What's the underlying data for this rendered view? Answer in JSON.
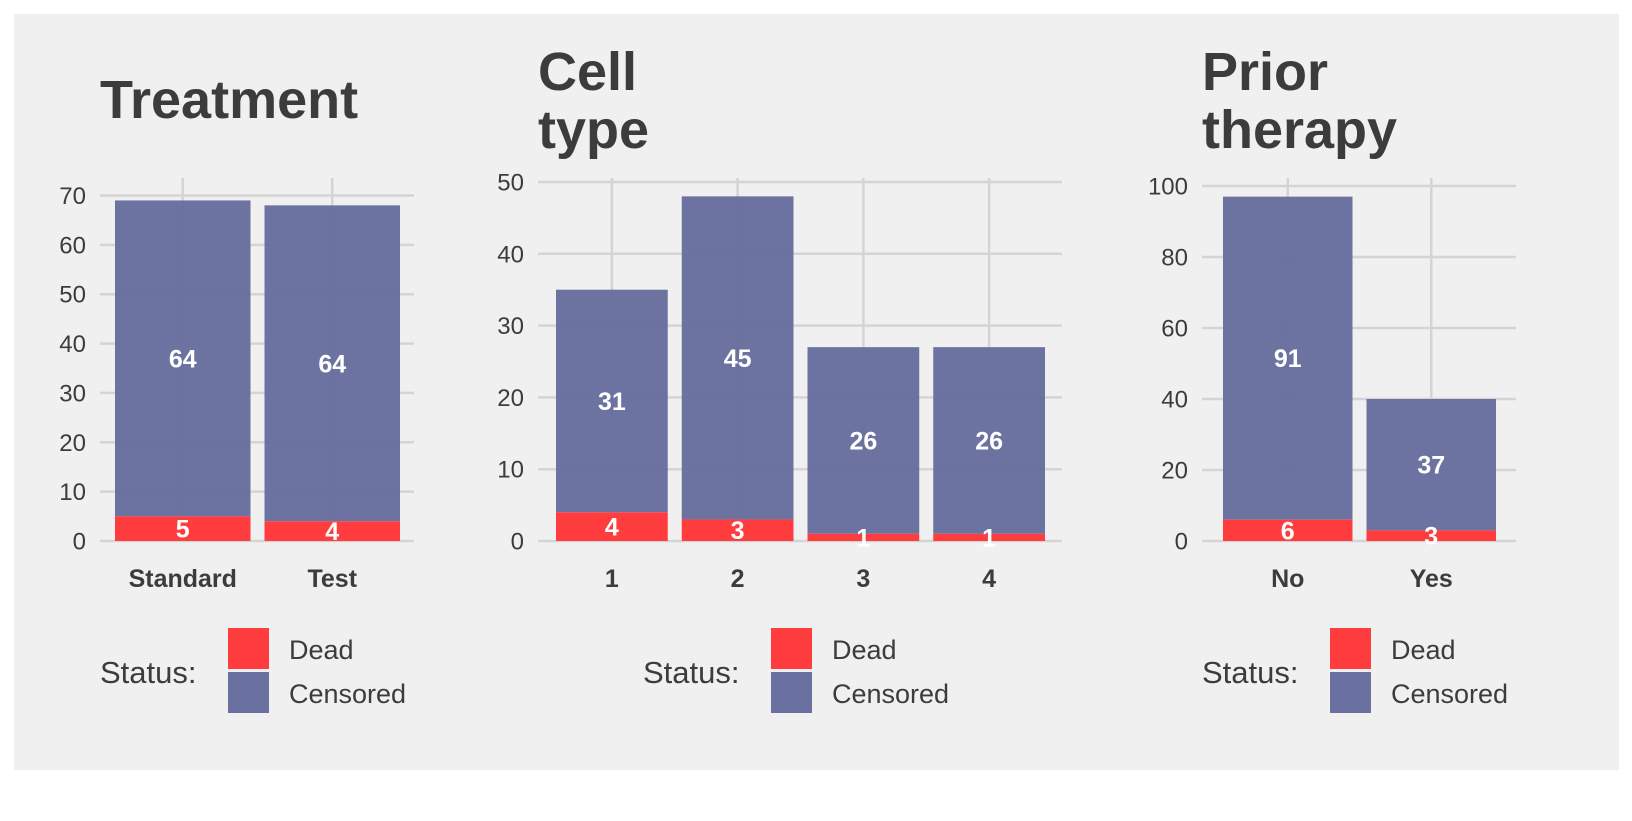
{
  "colors": {
    "dead": "#ff3d3f",
    "censored": "#6a709f",
    "panel_bg": "#f0f0f0",
    "grid": "#d4d4d4",
    "text": "#3c3c3c",
    "bar_label": "#ffffff"
  },
  "legend": {
    "title": "Status:",
    "dead_label": "Dead",
    "censored_label": "Censored"
  },
  "chart_data": [
    {
      "type": "bar",
      "stacked": true,
      "title_lines": [
        "Treatment"
      ],
      "categories": [
        "Standard",
        "Test"
      ],
      "series": [
        {
          "name": "Dead",
          "values": [
            5,
            4
          ]
        },
        {
          "name": "Censored",
          "values": [
            64,
            64
          ]
        }
      ],
      "yticks": [
        0,
        10,
        20,
        30,
        40,
        50,
        60,
        70
      ],
      "ylim": [
        0,
        70
      ],
      "grid": true,
      "legend_position": "bottom"
    },
    {
      "type": "bar",
      "stacked": true,
      "title_lines": [
        "Cell",
        "type"
      ],
      "categories": [
        "1",
        "2",
        "3",
        "4"
      ],
      "series": [
        {
          "name": "Dead",
          "values": [
            4,
            3,
            1,
            1
          ]
        },
        {
          "name": "Censored",
          "values": [
            31,
            45,
            26,
            26
          ]
        }
      ],
      "yticks": [
        0,
        10,
        20,
        30,
        40,
        50
      ],
      "ylim": [
        0,
        50
      ],
      "grid": true,
      "legend_position": "bottom"
    },
    {
      "type": "bar",
      "stacked": true,
      "title_lines": [
        "Prior",
        "therapy"
      ],
      "categories": [
        "No",
        "Yes"
      ],
      "series": [
        {
          "name": "Dead",
          "values": [
            6,
            3
          ]
        },
        {
          "name": "Censored",
          "values": [
            91,
            37
          ]
        }
      ],
      "yticks": [
        0,
        20,
        40,
        60,
        80,
        100
      ],
      "ylim": [
        0,
        100
      ],
      "grid": true,
      "legend_position": "bottom"
    }
  ]
}
